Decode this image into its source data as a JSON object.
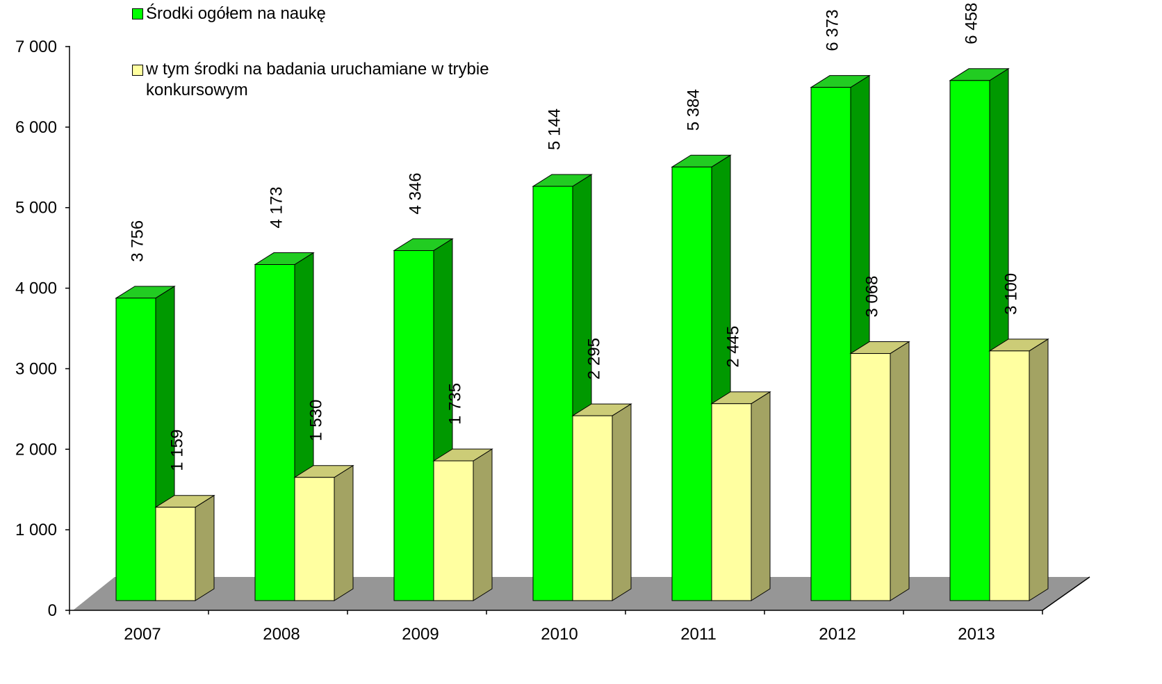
{
  "chart_data": {
    "type": "bar3d",
    "categories": [
      "2007",
      "2008",
      "2009",
      "2010",
      "2011",
      "2012",
      "2013"
    ],
    "series": [
      {
        "name": "Środki ogółem na naukę",
        "color": "#00ff00",
        "values": [
          3756,
          4173,
          4346,
          5144,
          5384,
          6373,
          6458
        ],
        "value_labels": [
          "3 756",
          "4 173",
          "4 346",
          "5 144",
          "5 384",
          "6 373",
          "6 458"
        ]
      },
      {
        "name": "w tym środki na badania uruchamiane w trybie konkursowym",
        "color": "#ffffa0",
        "values": [
          1159,
          1530,
          1735,
          2295,
          2445,
          3068,
          3100
        ],
        "value_labels": [
          "1 159",
          "1 530",
          "1 735",
          "2 295",
          "2 445",
          "3 068",
          "3 100"
        ]
      }
    ],
    "ylim": [
      0,
      7000
    ],
    "yticks": [
      0,
      {
        "value": 1000,
        "label": "1 000"
      },
      {
        "value": 2000,
        "label": "2 000"
      },
      {
        "value": 3000,
        "label": "3 000"
      },
      {
        "value": 4000,
        "label": "4 000"
      },
      {
        "value": 5000,
        "label": "5 000"
      },
      {
        "value": 6000,
        "label": "6 000"
      },
      {
        "value": 7000,
        "label": "7 000"
      }
    ]
  }
}
